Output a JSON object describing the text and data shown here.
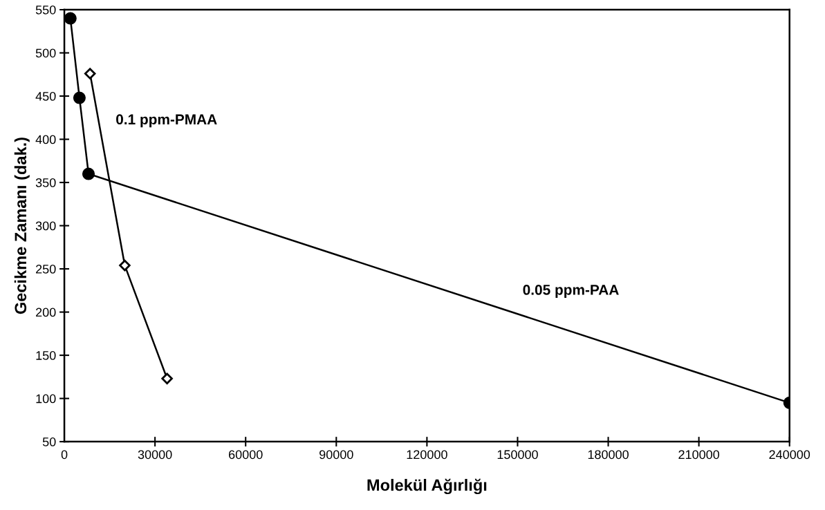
{
  "chart_data": {
    "type": "line",
    "xlabel": "Molekül Ağırlığı",
    "ylabel": "Gecikme Zamanı (dak.)",
    "series": [
      {
        "name": "0.05 ppm-PAA",
        "color": "#000000",
        "marker": "circle",
        "x": [
          2000,
          5000,
          8000,
          240000
        ],
        "values": [
          540,
          448,
          360,
          95
        ]
      },
      {
        "name": "0.1 ppm-PMAA",
        "color": "#000000",
        "marker": "diamond",
        "x": [
          8500,
          20000,
          34000
        ],
        "values": [
          476,
          254,
          123
        ]
      }
    ],
    "xlim": [
      0,
      240000
    ],
    "xticks": [
      0,
      30000,
      60000,
      90000,
      120000,
      150000,
      180000,
      210000,
      240000
    ],
    "ylim": [
      50,
      550
    ],
    "yticks": [
      50,
      100,
      150,
      200,
      250,
      300,
      350,
      400,
      450,
      500,
      550
    ],
    "grid": false,
    "line_style": "solid"
  }
}
